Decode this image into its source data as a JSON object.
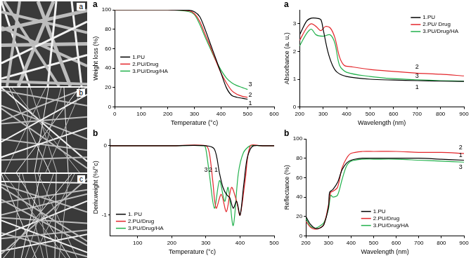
{
  "images": [
    {
      "panel": "a"
    },
    {
      "panel": "b"
    },
    {
      "panel": "c"
    }
  ],
  "chart_data": [
    {
      "type": "line",
      "panel": "a",
      "x_label": "Temperature (°c)",
      "y_label": "Weight loss (%)",
      "xlim": [
        0,
        600
      ],
      "xticks": [
        0,
        100,
        200,
        300,
        400,
        500,
        600
      ],
      "ylim": [
        0,
        100
      ],
      "yticks": [
        0,
        20,
        40,
        60,
        80,
        100
      ],
      "grid": false,
      "legend": "left",
      "series": [
        {
          "name": "1.PU",
          "color": "#000000",
          "x": [
            0,
            100,
            200,
            280,
            300,
            320,
            340,
            360,
            380,
            400,
            420,
            440,
            460,
            480,
            500
          ],
          "values": [
            100,
            100,
            100,
            99.5,
            98,
            93,
            80,
            65,
            50,
            35,
            20,
            12,
            10,
            9,
            8
          ]
        },
        {
          "name": "2.PU/Drug",
          "color": "#e3262b",
          "x": [
            0,
            100,
            200,
            280,
            300,
            320,
            340,
            360,
            380,
            400,
            420,
            440,
            460,
            480,
            500
          ],
          "values": [
            100,
            100,
            100,
            99,
            96,
            88,
            75,
            62,
            48,
            35,
            25,
            17,
            13,
            11,
            10
          ]
        },
        {
          "name": "3.PU/Drug/HA",
          "color": "#22b14c",
          "x": [
            0,
            100,
            200,
            280,
            300,
            320,
            340,
            360,
            380,
            400,
            420,
            440,
            460,
            480,
            500
          ],
          "values": [
            100,
            100,
            100,
            98,
            95,
            85,
            72,
            60,
            48,
            38,
            30,
            25,
            22,
            20,
            18
          ]
        }
      ],
      "annotations": [
        {
          "text": "3",
          "x": 510,
          "y": 23
        },
        {
          "text": "2",
          "x": 510,
          "y": 12
        },
        {
          "text": "1",
          "x": 510,
          "y": 4
        }
      ]
    },
    {
      "type": "line",
      "panel": "b",
      "x_label": "Temperature (°c)",
      "y_label": "Deriv.weight (%/°c)",
      "xlim": [
        20,
        500
      ],
      "xticks": [
        100,
        200,
        300,
        400,
        500
      ],
      "ylim": [
        -1.3,
        0.1
      ],
      "yticks": [
        -1,
        0
      ],
      "grid": false,
      "legend": "southwest",
      "series": [
        {
          "name": "1. PU",
          "color": "#000000",
          "x": [
            20,
            100,
            200,
            300,
            325,
            340,
            350,
            360,
            370,
            380,
            390,
            400,
            410,
            420,
            430,
            440,
            470,
            500
          ],
          "values": [
            0,
            0,
            0,
            0,
            -0.05,
            -0.4,
            -0.6,
            -0.7,
            -0.75,
            -0.9,
            -0.8,
            -1.0,
            -0.6,
            -0.2,
            -0.05,
            0,
            0,
            0
          ]
        },
        {
          "name": "2.PU/Drug",
          "color": "#e3262b",
          "x": [
            20,
            100,
            200,
            300,
            310,
            320,
            330,
            345,
            360,
            375,
            390,
            400,
            415,
            430,
            460,
            500
          ],
          "values": [
            0,
            0,
            0,
            0,
            -0.1,
            -0.5,
            -0.9,
            -0.7,
            -0.95,
            -0.6,
            -0.8,
            -1.0,
            -0.5,
            0,
            0,
            0
          ]
        },
        {
          "name": "3.PU/Drug/HA",
          "color": "#22b14c",
          "x": [
            20,
            100,
            200,
            295,
            300,
            310,
            325,
            340,
            355,
            365,
            380,
            395,
            410,
            430,
            460,
            500
          ],
          "values": [
            0,
            0,
            0,
            0,
            -0.05,
            -0.4,
            -0.9,
            -0.5,
            -0.8,
            -0.6,
            -1.15,
            -0.4,
            -0.1,
            0,
            0,
            0
          ]
        }
      ],
      "annotations": [
        {
          "text": "3",
          "x": 300,
          "y": -0.35
        },
        {
          "text": "2",
          "x": 313,
          "y": -0.35
        },
        {
          "text": "1",
          "x": 330,
          "y": -0.35
        }
      ]
    },
    {
      "type": "line",
      "panel": "a",
      "x_label": "Wavelength (nm)",
      "y_label": "Absorbance (a. u.)",
      "xlim": [
        200,
        900
      ],
      "xticks": [
        200,
        300,
        400,
        500,
        600,
        700,
        800,
        900
      ],
      "ylim": [
        0,
        3.5
      ],
      "yticks": [
        0,
        1,
        2,
        3
      ],
      "grid": false,
      "legend": "northeast",
      "series": [
        {
          "name": "1.PU",
          "color": "#000000",
          "x": [
            200,
            230,
            250,
            270,
            290,
            300,
            320,
            340,
            360,
            400,
            500,
            600,
            700,
            800,
            900
          ],
          "values": [
            2.6,
            3.1,
            3.2,
            3.2,
            3.15,
            2.8,
            2.0,
            1.5,
            1.25,
            1.1,
            1.0,
            0.97,
            0.95,
            0.93,
            0.92
          ]
        },
        {
          "name": "2.PU/ Drug",
          "color": "#e3262b",
          "x": [
            200,
            230,
            250,
            270,
            290,
            310,
            330,
            350,
            370,
            390,
            420,
            500,
            600,
            700,
            800,
            900
          ],
          "values": [
            2.4,
            2.85,
            3.0,
            2.9,
            2.75,
            2.9,
            2.85,
            2.5,
            1.8,
            1.5,
            1.45,
            1.35,
            1.28,
            1.22,
            1.18,
            1.12
          ]
        },
        {
          "name": "3.PU/Drug/HA",
          "color": "#22b14c",
          "x": [
            200,
            230,
            250,
            270,
            300,
            330,
            350,
            370,
            400,
            500,
            600,
            700,
            800,
            900
          ],
          "values": [
            2.2,
            2.65,
            2.8,
            2.6,
            2.55,
            2.6,
            2.3,
            1.5,
            1.25,
            1.1,
            1.02,
            0.98,
            0.95,
            0.93
          ]
        }
      ],
      "annotations": [
        {
          "text": "2",
          "x": 700,
          "y": 1.45
        },
        {
          "text": "3",
          "x": 700,
          "y": 1.12
        },
        {
          "text": "1",
          "x": 700,
          "y": 0.72
        }
      ]
    },
    {
      "type": "line",
      "panel": "b",
      "x_label": "Wavelength (nm)",
      "y_label": "Reflectance (%)",
      "xlim": [
        200,
        900
      ],
      "xticks": [
        200,
        300,
        400,
        500,
        600,
        700,
        800,
        900
      ],
      "ylim": [
        0,
        100
      ],
      "yticks": [
        0,
        20,
        40,
        60,
        80,
        100
      ],
      "grid": false,
      "legend": "south",
      "series": [
        {
          "name": "1.PU",
          "color": "#000000",
          "x": [
            200,
            220,
            240,
            260,
            280,
            300,
            305,
            320,
            340,
            360,
            380,
            400,
            450,
            500,
            600,
            700,
            800,
            900
          ],
          "values": [
            20,
            12,
            8,
            8,
            12,
            30,
            45,
            48,
            55,
            68,
            75,
            78,
            80,
            80,
            80,
            80,
            79,
            78
          ]
        },
        {
          "name": "2.PU/Drug",
          "color": "#e3262b",
          "x": [
            200,
            220,
            240,
            260,
            280,
            300,
            310,
            320,
            340,
            360,
            380,
            400,
            450,
            500,
            600,
            700,
            800,
            900
          ],
          "values": [
            15,
            9,
            7,
            8,
            12,
            32,
            45,
            46,
            50,
            70,
            80,
            85,
            87,
            87,
            87,
            86,
            86,
            85
          ]
        },
        {
          "name": "3.PU/Drug/HA",
          "color": "#22b14c",
          "x": [
            200,
            220,
            240,
            260,
            280,
            300,
            310,
            320,
            340,
            360,
            380,
            400,
            450,
            500,
            600,
            700,
            800,
            900
          ],
          "values": [
            18,
            10,
            8,
            10,
            14,
            28,
            42,
            40,
            42,
            58,
            72,
            77,
            79,
            79,
            79,
            78,
            77,
            76
          ]
        }
      ],
      "annotations": [
        {
          "text": "2",
          "x": 885,
          "y": 91
        },
        {
          "text": "1",
          "x": 885,
          "y": 83
        },
        {
          "text": "3",
          "x": 885,
          "y": 71
        }
      ]
    }
  ]
}
